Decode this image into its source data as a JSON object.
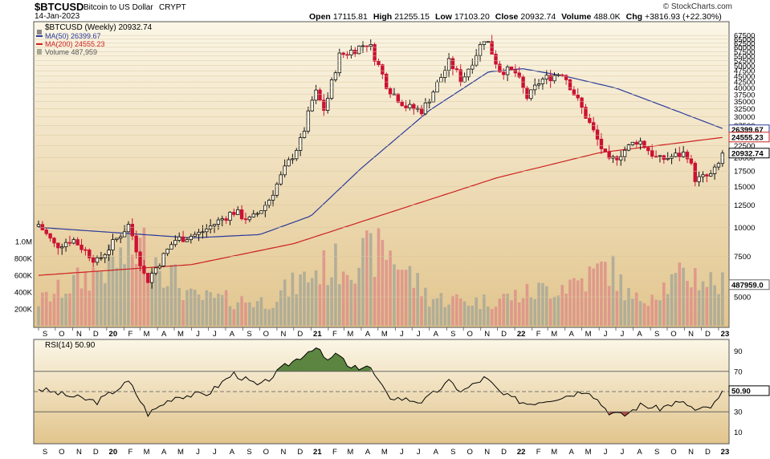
{
  "header": {
    "symbol": "$BTCUSD",
    "description": "Bitcoin to US Dollar",
    "exchange": "CRYPT",
    "date": "14-Jan-2023",
    "watermark": "© StockCharts.com",
    "ohlc": [
      {
        "label": "Open",
        "value": "17115.81"
      },
      {
        "label": "High",
        "value": "21255.15"
      },
      {
        "label": "Low",
        "value": "17103.20"
      },
      {
        "label": "Close",
        "value": "20932.74"
      },
      {
        "label": "Volume",
        "value": "488.0K"
      },
      {
        "label": "Chg",
        "value": "+3816.93 (+22.30%)"
      }
    ]
  },
  "legend": {
    "price": "$BTCUSD (Weekly) 20932.74",
    "ma50": "MA(50) 26399.67",
    "ma200": "MA(200) 24555.23",
    "volume": "Volume 487,959",
    "rsi": "RSI(14) 50.90"
  },
  "colors": {
    "up": "#111111",
    "down": "#cc1133",
    "ma50": "#2a3a9a",
    "ma200": "#cc2222",
    "volume_up": "#a8a898",
    "volume_down": "#dd9088",
    "rsi_overbought": "#4a7a30",
    "rsi_oversold": "#b04040",
    "bg_top": "#fbf6e6",
    "bg_bottom": "#e2c58d"
  },
  "chart_data": [
    {
      "type": "candlestick",
      "title": "$BTCUSD (Weekly)",
      "scale": "log",
      "x_range": [
        "2019-09-01",
        "2023-01-14"
      ],
      "ylim": [
        4000,
        75000
      ],
      "y_ticks": [
        5000,
        7500,
        10000,
        12500,
        15000,
        17500,
        20000,
        22500,
        25000,
        27500,
        30000,
        32500,
        35000,
        37500,
        40000,
        42500,
        45000,
        47500,
        50000,
        52500,
        55000,
        57500,
        60000,
        62500,
        65000,
        67500
      ],
      "x_tick_labels": [
        "S",
        "O",
        "N",
        "D",
        "20",
        "F",
        "M",
        "A",
        "M",
        "J",
        "J",
        "A",
        "S",
        "O",
        "N",
        "D",
        "21",
        "F",
        "M",
        "A",
        "M",
        "J",
        "J",
        "A",
        "S",
        "O",
        "N",
        "D",
        "22",
        "F",
        "M",
        "A",
        "M",
        "J",
        "J",
        "A",
        "S",
        "O",
        "N",
        "D",
        "23"
      ],
      "keypoints": {
        "dates": [
          "2019-09-01",
          "2019-10-01",
          "2019-11-01",
          "2019-12-15",
          "2020-02-10",
          "2020-03-12",
          "2020-05-01",
          "2020-06-15",
          "2020-08-15",
          "2020-09-15",
          "2020-10-15",
          "2020-11-15",
          "2020-12-15",
          "2021-01-08",
          "2021-01-25",
          "2021-02-20",
          "2021-03-15",
          "2021-04-14",
          "2021-05-19",
          "2021-06-22",
          "2021-07-20",
          "2021-09-06",
          "2021-09-28",
          "2021-11-09",
          "2021-12-04",
          "2022-01-01",
          "2022-01-24",
          "2022-02-15",
          "2022-03-28",
          "2022-05-12",
          "2022-06-18",
          "2022-08-10",
          "2022-09-15",
          "2022-11-05",
          "2022-11-21",
          "2022-12-20",
          "2023-01-14"
        ],
        "close": [
          10300,
          8300,
          8900,
          7100,
          10300,
          5800,
          8800,
          9400,
          11700,
          10700,
          12800,
          17800,
          24000,
          39000,
          32000,
          55000,
          58000,
          63000,
          40000,
          33000,
          32000,
          52000,
          43000,
          67000,
          48000,
          47000,
          36000,
          43000,
          47000,
          29000,
          19000,
          24000,
          19500,
          21000,
          16000,
          16800,
          20932
        ]
      },
      "ma50_points": {
        "dates": [
          "2019-09-01",
          "2020-06-01",
          "2020-10-01",
          "2021-01-01",
          "2021-04-01",
          "2021-08-01",
          "2021-11-15",
          "2022-01-15",
          "2022-04-01",
          "2022-07-01",
          "2022-10-01",
          "2023-01-14"
        ],
        "values": [
          10000,
          9000,
          9300,
          11200,
          18000,
          32000,
          47000,
          48500,
          45000,
          40000,
          33000,
          26400
        ]
      },
      "ma200_points": {
        "dates": [
          "2019-09-01",
          "2020-06-01",
          "2020-12-01",
          "2021-06-01",
          "2021-12-01",
          "2022-06-01",
          "2023-01-14"
        ],
        "values": [
          6200,
          6900,
          8500,
          11800,
          16400,
          21000,
          24555
        ]
      },
      "annotations": [
        "26399.67",
        "24555.23",
        "20932.74"
      ]
    },
    {
      "type": "bar",
      "title": "Volume",
      "y_ticks": [
        "200K",
        "400K",
        "600K",
        "800K",
        "1.0M"
      ],
      "last_value": "487959.0",
      "keypoints": {
        "dates": [
          "2019-09-01",
          "2020-03-12",
          "2020-06-01",
          "2020-10-15",
          "2021-01-15",
          "2021-05-19",
          "2021-08-01",
          "2021-11-01",
          "2022-01-24",
          "2022-05-12",
          "2022-06-18",
          "2022-08-01",
          "2022-11-10",
          "2023-01-14"
        ],
        "values": [
          300000,
          1000000,
          350000,
          300000,
          700000,
          950000,
          350000,
          300000,
          400000,
          600000,
          750000,
          300000,
          650000,
          488000
        ]
      }
    },
    {
      "type": "line",
      "title": "RSI(14)",
      "ylim": [
        0,
        100
      ],
      "y_ticks": [
        10,
        30,
        50,
        70,
        90
      ],
      "reference_lines": [
        70,
        50,
        30
      ],
      "last_value": "50.90",
      "x_tick_labels": [
        "S",
        "O",
        "N",
        "D",
        "20",
        "F",
        "M",
        "A",
        "M",
        "J",
        "J",
        "A",
        "S",
        "O",
        "N",
        "D",
        "21",
        "F",
        "M",
        "A",
        "M",
        "J",
        "J",
        "A",
        "S",
        "O",
        "N",
        "D",
        "22",
        "F",
        "M",
        "A",
        "M",
        "J",
        "J",
        "A",
        "S",
        "O",
        "N",
        "D",
        "23"
      ],
      "keypoints": {
        "dates": [
          "2019-09-01",
          "2019-10-15",
          "2019-12-15",
          "2020-02-10",
          "2020-03-15",
          "2020-05-01",
          "2020-07-01",
          "2020-08-15",
          "2020-10-01",
          "2020-11-15",
          "2020-12-15",
          "2021-01-08",
          "2021-01-30",
          "2021-02-20",
          "2021-03-10",
          "2021-04-14",
          "2021-05-19",
          "2021-07-20",
          "2021-09-06",
          "2021-09-28",
          "2021-11-09",
          "2021-12-10",
          "2022-01-24",
          "2022-03-28",
          "2022-05-12",
          "2022-06-18",
          "2022-07-15",
          "2022-08-15",
          "2022-09-15",
          "2022-10-15",
          "2022-11-05",
          "2022-11-21",
          "2022-12-20",
          "2023-01-14"
        ],
        "values": [
          53,
          47,
          40,
          60,
          28,
          45,
          48,
          68,
          55,
          75,
          85,
          95,
          80,
          88,
          72,
          76,
          45,
          40,
          60,
          50,
          64,
          47,
          38,
          45,
          52,
          30,
          26,
          37,
          33,
          39,
          38,
          31,
          35,
          50.9
        ]
      }
    }
  ]
}
